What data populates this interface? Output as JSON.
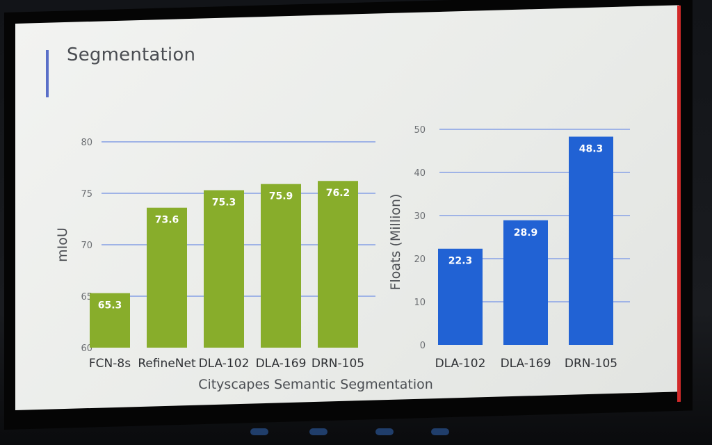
{
  "slide": {
    "title": "Segmentation"
  },
  "colors": {
    "green": "#88ad2b",
    "blue": "#2162d4",
    "grid": "#9fb3e6"
  },
  "chart_data": [
    {
      "type": "bar",
      "title": "",
      "categories": [
        "FCN-8s",
        "RefineNet",
        "DLA-102",
        "DLA-169",
        "DRN-105"
      ],
      "values": [
        65.3,
        73.6,
        75.3,
        75.9,
        76.2
      ],
      "value_labels": [
        "65.3",
        "73.6",
        "75.3",
        "75.9",
        "76.2"
      ],
      "xlabel": "Cityscapes Semantic Segmentation",
      "ylabel": "mIoU",
      "ylim": [
        60,
        80
      ],
      "yticks": [
        "60",
        "65",
        "70",
        "75",
        "80"
      ],
      "grid": true,
      "color": "green"
    },
    {
      "type": "bar",
      "title": "",
      "categories": [
        "DLA-102",
        "DLA-169",
        "DRN-105"
      ],
      "values": [
        22.3,
        28.9,
        48.3
      ],
      "value_labels": [
        "22.3",
        "28.9",
        "48.3"
      ],
      "xlabel": "",
      "ylabel": "Floats (Million)",
      "ylim": [
        0,
        50
      ],
      "yticks": [
        "0",
        "10",
        "20",
        "30",
        "40",
        "50"
      ],
      "grid": true,
      "color": "blue"
    }
  ]
}
